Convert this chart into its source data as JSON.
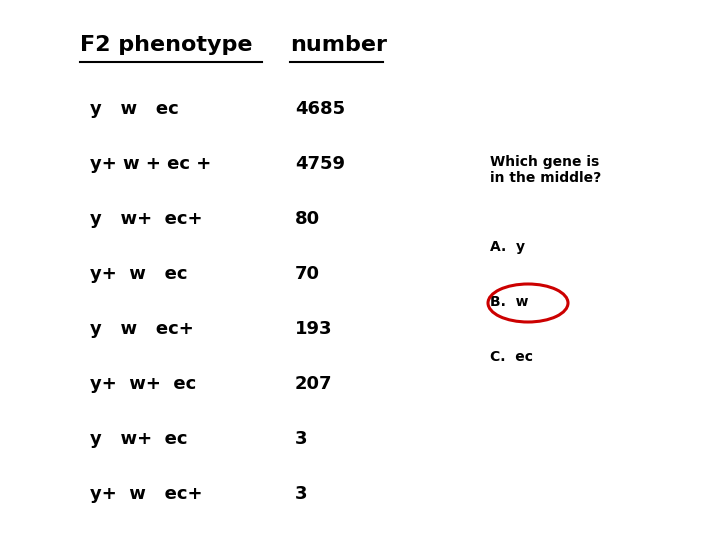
{
  "title1": "F2 phenotype",
  "title2": "number",
  "rows": [
    {
      "phenotype": "y   w   ec",
      "number": "4685"
    },
    {
      "phenotype": "y+ w + ec +",
      "number": "4759"
    },
    {
      "phenotype": "y   w+  ec+",
      "number": "80"
    },
    {
      "phenotype": "y+  w   ec",
      "number": "70"
    },
    {
      "phenotype": "y   w   ec+",
      "number": "193"
    },
    {
      "phenotype": "y+  w+  ec",
      "number": "207"
    },
    {
      "phenotype": "y   w+  ec",
      "number": "3"
    },
    {
      "phenotype": "y+  w   ec+",
      "number": "3"
    }
  ],
  "question": "Which gene is\nin the middle?",
  "answers": [
    {
      "label": "A.  y",
      "circled": false
    },
    {
      "label": "B.  w",
      "circled": true
    },
    {
      "label": "C.  ec",
      "circled": false
    }
  ],
  "bg_color": "#ffffff",
  "text_color": "#000000",
  "circle_color": "#cc0000",
  "title_fontsize": 16,
  "row_fontsize": 13,
  "question_fontsize": 10,
  "answer_fontsize": 10
}
